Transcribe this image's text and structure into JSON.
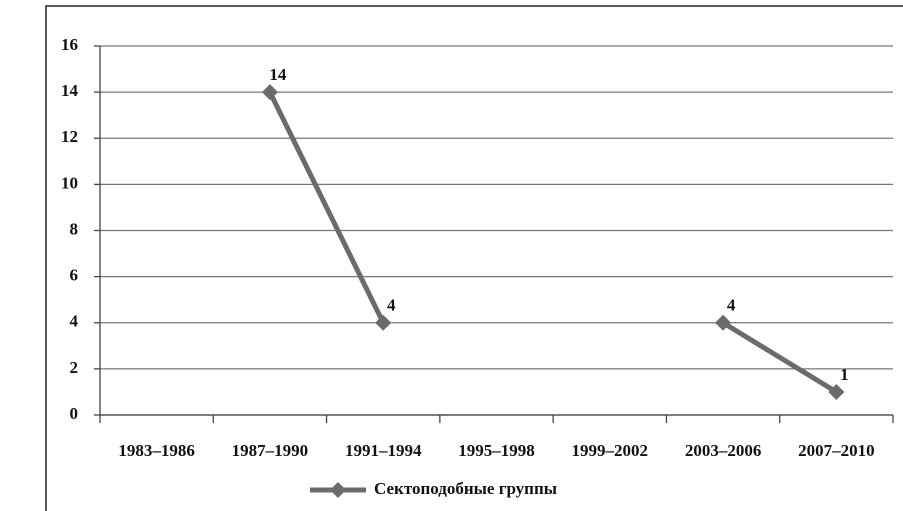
{
  "chart_data": {
    "type": "line",
    "categories": [
      "1983–1986",
      "1987–1990",
      "1991–1994",
      "1995–1998",
      "1999–2002",
      "2003–2006",
      "2007–2010"
    ],
    "series": [
      {
        "name": "Сектоподобные группы",
        "color": "#6b6b6b",
        "values": [
          null,
          14,
          4,
          null,
          null,
          4,
          1
        ]
      }
    ],
    "ylim": [
      0,
      16
    ],
    "yticks": [
      0,
      2,
      4,
      6,
      8,
      10,
      12,
      14,
      16
    ],
    "grid": true,
    "legend": "bottom"
  }
}
